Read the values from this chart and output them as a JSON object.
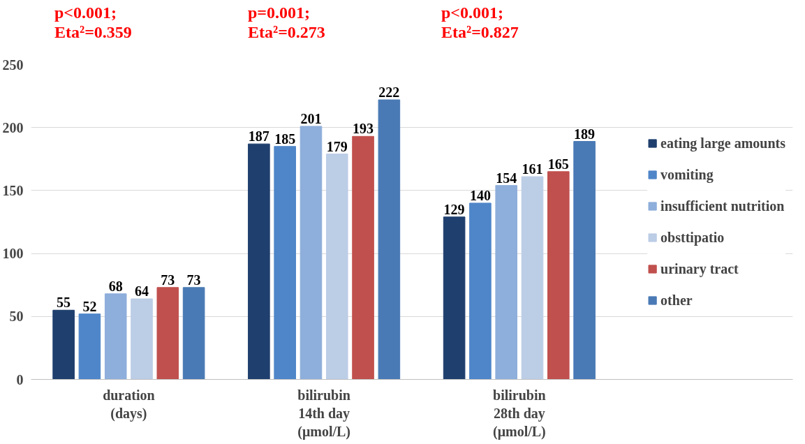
{
  "chart_data": {
    "type": "bar",
    "categories": [
      "duration\n(days)",
      "bilirubin\n14th day\n(μmol/L)",
      "bilirubin\n28th day\n(μmol/L)"
    ],
    "series": [
      {
        "name": "eating large amounts",
        "color": "#1f3f6e",
        "values": [
          55,
          187,
          129
        ]
      },
      {
        "name": "vomiting",
        "color": "#4f86c9",
        "values": [
          52,
          185,
          140
        ]
      },
      {
        "name": "insufficient nutrition",
        "color": "#8eaedb",
        "values": [
          68,
          201,
          154
        ]
      },
      {
        "name": "obsttipatio",
        "color": "#bccde6",
        "values": [
          64,
          179,
          161
        ]
      },
      {
        "name": "urinary tract",
        "color": "#c0504d",
        "values": [
          73,
          193,
          165
        ]
      },
      {
        "name": "other",
        "color": "#4a7ab5",
        "values": [
          73,
          222,
          189
        ]
      }
    ],
    "annotations": [
      "p<0.001;\nEta²=0.359",
      "p=0.001;\nEta²=0.273",
      "p<0.001;\nEta²=0.827"
    ],
    "ylim": [
      0,
      250
    ],
    "yticks": [
      0,
      50,
      100,
      150,
      200,
      250
    ],
    "grid": "y",
    "legend": "right",
    "data_labels": true
  }
}
